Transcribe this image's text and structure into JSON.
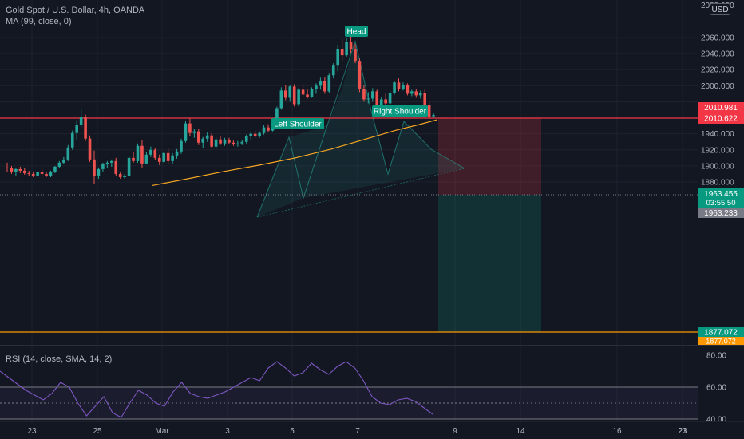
{
  "symbol_title": "Gold Spot / U.S. Dollar, 4h, OANDA",
  "ma_legend": "MA (99, close, 0)",
  "rsi_legend": "RSI (14, close, SMA, 14, 2)",
  "currency_button": "USD",
  "colors": {
    "background": "#131722",
    "up": "#26a69a",
    "down": "#ef5350",
    "ma_line": "#f5a623",
    "rsi_line": "#7e57c2",
    "resistance_line": "#f23645",
    "support_line": "#ff9800"
  },
  "pattern_labels": {
    "head": "Head",
    "left_shoulder": "Left Shoulder",
    "right_shoulder": "Right Shoulder"
  },
  "price_axis": {
    "ticks": [
      "2060.000",
      "2040.000",
      "2020.000",
      "2000.000",
      "1980.000",
      "1960.000",
      "1940.000",
      "1920.000",
      "1900.000",
      "1880.000"
    ],
    "top_tick": "2080.000"
  },
  "price_labels": {
    "entry_upper": "2010.981",
    "entry_lower": "2010.622",
    "last_price": "1963.455",
    "countdown": "03:55:50",
    "bid_price": "1963.233",
    "target_upper": "1877.072",
    "target_lower": "1877.072"
  },
  "rsi_axis": {
    "ticks": [
      "80.00",
      "60.00",
      "40.00"
    ]
  },
  "time_axis": {
    "ticks": [
      "23",
      "25",
      "Mar",
      "3",
      "5",
      "7",
      "9",
      "14",
      "16",
      "21",
      "23"
    ]
  },
  "chart_data": {
    "type": "candlestick",
    "title": "Gold Spot / U.S. Dollar, 4h, OANDA",
    "ylim": [
      1874,
      2082
    ],
    "levels": {
      "resistance": 2010.8,
      "support": 1877.072,
      "last": 1963.455
    },
    "candles": [
      [
        1898,
        1904,
        1892,
        1897
      ],
      [
        1897,
        1900,
        1890,
        1893
      ],
      [
        1893,
        1898,
        1888,
        1896
      ],
      [
        1896,
        1899,
        1891,
        1894
      ],
      [
        1894,
        1897,
        1889,
        1891
      ],
      [
        1891,
        1894,
        1887,
        1890
      ],
      [
        1890,
        1893,
        1886,
        1888
      ],
      [
        1888,
        1893,
        1887,
        1892
      ],
      [
        1892,
        1897,
        1888,
        1890
      ],
      [
        1890,
        1892,
        1886,
        1888
      ],
      [
        1888,
        1894,
        1886,
        1893
      ],
      [
        1893,
        1900,
        1891,
        1899
      ],
      [
        1899,
        1906,
        1897,
        1904
      ],
      [
        1904,
        1911,
        1902,
        1908
      ],
      [
        1908,
        1926,
        1906,
        1923
      ],
      [
        1923,
        1944,
        1920,
        1941
      ],
      [
        1941,
        1957,
        1933,
        1951
      ],
      [
        1951,
        1971,
        1948,
        1961
      ],
      [
        1961,
        1964,
        1931,
        1934
      ],
      [
        1934,
        1938,
        1905,
        1908
      ],
      [
        1908,
        1919,
        1878,
        1888
      ],
      [
        1888,
        1898,
        1884,
        1896
      ],
      [
        1896,
        1904,
        1893,
        1902
      ],
      [
        1902,
        1906,
        1897,
        1904
      ],
      [
        1904,
        1908,
        1899,
        1906
      ],
      [
        1906,
        1910,
        1888,
        1890
      ],
      [
        1890,
        1893,
        1884,
        1886
      ],
      [
        1886,
        1890,
        1884,
        1888
      ],
      [
        1888,
        1912,
        1887,
        1910
      ],
      [
        1910,
        1918,
        1904,
        1906
      ],
      [
        1906,
        1928,
        1904,
        1925
      ],
      [
        1925,
        1932,
        1898,
        1903
      ],
      [
        1903,
        1917,
        1902,
        1914
      ],
      [
        1914,
        1924,
        1911,
        1920
      ],
      [
        1920,
        1922,
        1907,
        1910
      ],
      [
        1910,
        1914,
        1901,
        1905
      ],
      [
        1905,
        1918,
        1904,
        1916
      ],
      [
        1916,
        1922,
        1903,
        1906
      ],
      [
        1906,
        1916,
        1902,
        1913
      ],
      [
        1913,
        1921,
        1909,
        1918
      ],
      [
        1918,
        1934,
        1915,
        1931
      ],
      [
        1931,
        1956,
        1929,
        1953
      ],
      [
        1953,
        1959,
        1937,
        1941
      ],
      [
        1941,
        1946,
        1935,
        1943
      ],
      [
        1943,
        1946,
        1926,
        1929
      ],
      [
        1929,
        1936,
        1922,
        1934
      ],
      [
        1934,
        1942,
        1930,
        1938
      ],
      [
        1938,
        1941,
        1922,
        1924
      ],
      [
        1924,
        1936,
        1921,
        1933
      ],
      [
        1933,
        1937,
        1926,
        1928
      ],
      [
        1928,
        1935,
        1925,
        1932
      ],
      [
        1932,
        1935,
        1927,
        1929
      ],
      [
        1929,
        1932,
        1925,
        1927
      ],
      [
        1927,
        1931,
        1924,
        1928
      ],
      [
        1928,
        1932,
        1926,
        1930
      ],
      [
        1930,
        1939,
        1928,
        1937
      ],
      [
        1937,
        1942,
        1933,
        1940
      ],
      [
        1940,
        1944,
        1935,
        1937
      ],
      [
        1937,
        1943,
        1935,
        1941
      ],
      [
        1941,
        1951,
        1939,
        1948
      ],
      [
        1948,
        1952,
        1942,
        1944
      ],
      [
        1944,
        1957,
        1943,
        1955
      ],
      [
        1955,
        1974,
        1953,
        1972
      ],
      [
        1972,
        1998,
        1970,
        1994
      ],
      [
        1994,
        2001,
        1982,
        1985
      ],
      [
        1985,
        2001,
        1980,
        1999
      ],
      [
        1999,
        2002,
        1974,
        1977
      ],
      [
        1977,
        1997,
        1974,
        1995
      ],
      [
        1995,
        2001,
        1986,
        1989
      ],
      [
        1989,
        1996,
        1984,
        1986
      ],
      [
        1986,
        1998,
        1985,
        1996
      ],
      [
        1996,
        2003,
        1990,
        2000
      ],
      [
        2000,
        2010,
        1995,
        2006
      ],
      [
        2006,
        2011,
        1990,
        1993
      ],
      [
        1993,
        2015,
        1991,
        2013
      ],
      [
        2013,
        2028,
        2009,
        2025
      ],
      [
        2025,
        2050,
        2018,
        2046
      ],
      [
        2046,
        2058,
        2030,
        2038
      ],
      [
        2038,
        2060,
        2036,
        2055
      ],
      [
        2055,
        2062,
        2040,
        2045
      ],
      [
        2045,
        2052,
        2028,
        2030
      ],
      [
        2030,
        2034,
        1992,
        1996
      ],
      [
        1996,
        2001,
        1980,
        1983
      ],
      [
        1983,
        1992,
        1978,
        1984
      ],
      [
        1984,
        1997,
        1980,
        1993
      ],
      [
        1993,
        1995,
        1973,
        1976
      ],
      [
        1976,
        1986,
        1971,
        1983
      ],
      [
        1983,
        1990,
        1975,
        1978
      ],
      [
        1978,
        1994,
        1976,
        1991
      ],
      [
        1991,
        2006,
        1989,
        2004
      ],
      [
        2004,
        2009,
        1993,
        1996
      ],
      [
        1996,
        2004,
        1994,
        2001
      ],
      [
        2001,
        2003,
        1988,
        1990
      ],
      [
        1990,
        1995,
        1987,
        1993
      ],
      [
        1993,
        1996,
        1985,
        1988
      ],
      [
        1988,
        1994,
        1984,
        1991
      ],
      [
        1991,
        1995,
        1972,
        1976
      ],
      [
        1976,
        1980,
        1958,
        1961
      ],
      [
        1962,
        1966,
        1960,
        1963.455
      ]
    ],
    "ma_99": [
      [
        0,
        1875.5
      ],
      [
        50,
        1884
      ],
      [
        100,
        1893
      ],
      [
        150,
        1901
      ],
      [
        200,
        1910
      ],
      [
        250,
        1921
      ],
      [
        300,
        1934
      ],
      [
        340,
        1944.5
      ],
      [
        370,
        1951
      ],
      [
        397,
        1957.5
      ]
    ],
    "rsi": [
      [
        0,
        70
      ],
      [
        2,
        66
      ],
      [
        4,
        62
      ],
      [
        6,
        58
      ],
      [
        8,
        55
      ],
      [
        10,
        52
      ],
      [
        12,
        56
      ],
      [
        14,
        63
      ],
      [
        16,
        60
      ],
      [
        18,
        50
      ],
      [
        20,
        42
      ],
      [
        22,
        48
      ],
      [
        24,
        54
      ],
      [
        26,
        44
      ],
      [
        28,
        41
      ],
      [
        30,
        50
      ],
      [
        32,
        58
      ],
      [
        34,
        55
      ],
      [
        36,
        50
      ],
      [
        38,
        48
      ],
      [
        40,
        57
      ],
      [
        42,
        63
      ],
      [
        44,
        56
      ],
      [
        46,
        54
      ],
      [
        48,
        53
      ],
      [
        50,
        55
      ],
      [
        52,
        57
      ],
      [
        54,
        60
      ],
      [
        56,
        63
      ],
      [
        58,
        66
      ],
      [
        60,
        64
      ],
      [
        62,
        72
      ],
      [
        64,
        76
      ],
      [
        66,
        72
      ],
      [
        68,
        67
      ],
      [
        70,
        69
      ],
      [
        72,
        75
      ],
      [
        74,
        71
      ],
      [
        76,
        68
      ],
      [
        78,
        73
      ],
      [
        80,
        76
      ],
      [
        82,
        72
      ],
      [
        84,
        64
      ],
      [
        86,
        54
      ],
      [
        88,
        50
      ],
      [
        90,
        49
      ],
      [
        92,
        52
      ],
      [
        94,
        53
      ],
      [
        96,
        51
      ],
      [
        98,
        47
      ],
      [
        100,
        43
      ]
    ]
  }
}
